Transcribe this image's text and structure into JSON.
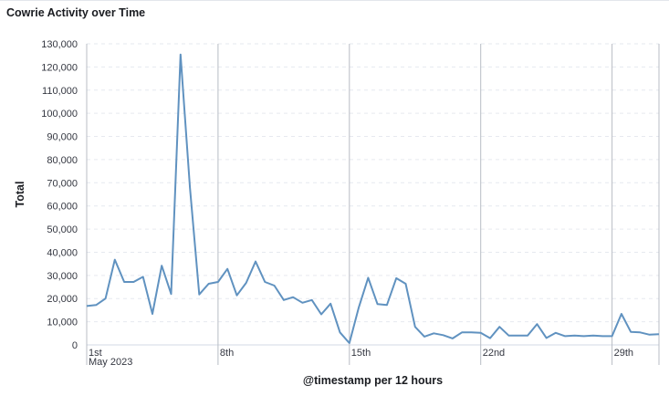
{
  "panel": {
    "title": "Cowrie Activity over Time"
  },
  "colors": {
    "line": "#6092c0",
    "grid": "#e6e9ef",
    "separator": "#b8bcc4"
  },
  "chart_data": {
    "type": "line",
    "title": "Cowrie Activity over Time",
    "xlabel": "@timestamp per 12 hours",
    "ylabel": "Total",
    "ylim": [
      0,
      130000
    ],
    "y_ticks": [
      {
        "value": 0,
        "label": "0"
      },
      {
        "value": 10000,
        "label": "10,000"
      },
      {
        "value": 20000,
        "label": "20,000"
      },
      {
        "value": 30000,
        "label": "30,000"
      },
      {
        "value": 40000,
        "label": "40,000"
      },
      {
        "value": 50000,
        "label": "50,000"
      },
      {
        "value": 60000,
        "label": "60,000"
      },
      {
        "value": 70000,
        "label": "70,000"
      },
      {
        "value": 80000,
        "label": "80,000"
      },
      {
        "value": 90000,
        "label": "90,000"
      },
      {
        "value": 100000,
        "label": "100,000"
      },
      {
        "value": 110000,
        "label": "110,000"
      },
      {
        "value": 120000,
        "label": "120,000"
      },
      {
        "value": 130000,
        "label": "130,000"
      }
    ],
    "x_ticks": [
      {
        "index": 0,
        "label": "1st",
        "sublabel": "May 2023"
      },
      {
        "index": 14,
        "label": "8th"
      },
      {
        "index": 28,
        "label": "15th"
      },
      {
        "index": 42,
        "label": "22nd"
      },
      {
        "index": 56,
        "label": "29th"
      }
    ],
    "x_unit": "12-hour buckets from May 1st, 2023",
    "grid": true,
    "legend": "none",
    "series": [
      {
        "values": [
          16800,
          17200,
          20000,
          36800,
          27200,
          27200,
          29400,
          13400,
          34200,
          22000,
          125400,
          68000,
          21800,
          26400,
          27200,
          32800,
          21400,
          26800,
          36000,
          27200,
          25600,
          19400,
          20600,
          18200,
          19400,
          13200,
          17800,
          5400,
          800,
          16200,
          29000,
          17600,
          17200,
          28800,
          26400,
          7800,
          3600,
          5000,
          4200,
          2800,
          5400,
          5400,
          5200,
          2900,
          7800,
          4000,
          4000,
          4000,
          9000,
          3000,
          5200,
          3800,
          4000,
          3800,
          4000,
          3800,
          3800,
          13400,
          5600,
          5400,
          4400,
          4600
        ]
      }
    ]
  }
}
